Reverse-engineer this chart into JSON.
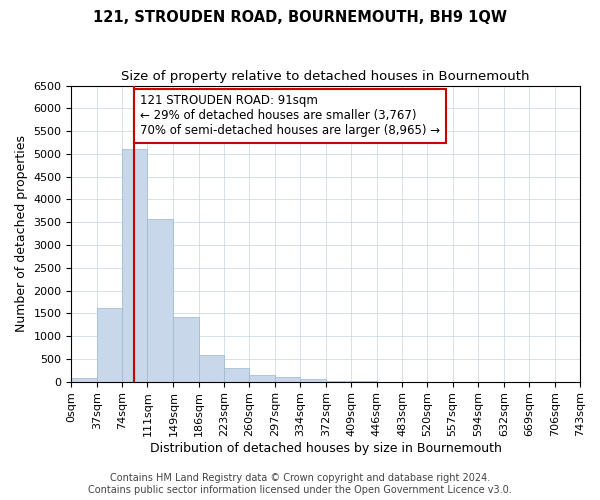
{
  "title": "121, STROUDEN ROAD, BOURNEMOUTH, BH9 1QW",
  "subtitle": "Size of property relative to detached houses in Bournemouth",
  "xlabel": "Distribution of detached houses by size in Bournemouth",
  "ylabel": "Number of detached properties",
  "footnote1": "Contains HM Land Registry data © Crown copyright and database right 2024.",
  "footnote2": "Contains public sector information licensed under the Open Government Licence v3.0.",
  "bar_edges": [
    0,
    37,
    74,
    111,
    149,
    186,
    223,
    260,
    297,
    334,
    372,
    409,
    446,
    483,
    520,
    557,
    594,
    632,
    669,
    706,
    743
  ],
  "bar_heights": [
    75,
    1625,
    5100,
    3575,
    1425,
    575,
    300,
    150,
    100,
    50,
    15,
    3,
    1,
    0,
    0,
    0,
    0,
    0,
    0,
    0
  ],
  "bar_color": "#c8d8ea",
  "bar_edgecolor": "#9ab8d0",
  "vline_x": 91,
  "vline_color": "#cc0000",
  "annotation_line1": "121 STROUDEN ROAD: 91sqm",
  "annotation_line2": "← 29% of detached houses are smaller (3,767)",
  "annotation_line3": "70% of semi-detached houses are larger (8,965) →",
  "annotation_box_color": "#ffffff",
  "annotation_box_edgecolor": "#cc0000",
  "ylim": [
    0,
    6500
  ],
  "xlim": [
    0,
    743
  ],
  "yticks": [
    0,
    500,
    1000,
    1500,
    2000,
    2500,
    3000,
    3500,
    4000,
    4500,
    5000,
    5500,
    6000,
    6500
  ],
  "title_fontsize": 10.5,
  "subtitle_fontsize": 9.5,
  "axis_label_fontsize": 9,
  "tick_fontsize": 8,
  "annotation_fontsize": 8.5,
  "footnote_fontsize": 7,
  "background_color": "#ffffff",
  "grid_color": "#c8d4e0"
}
